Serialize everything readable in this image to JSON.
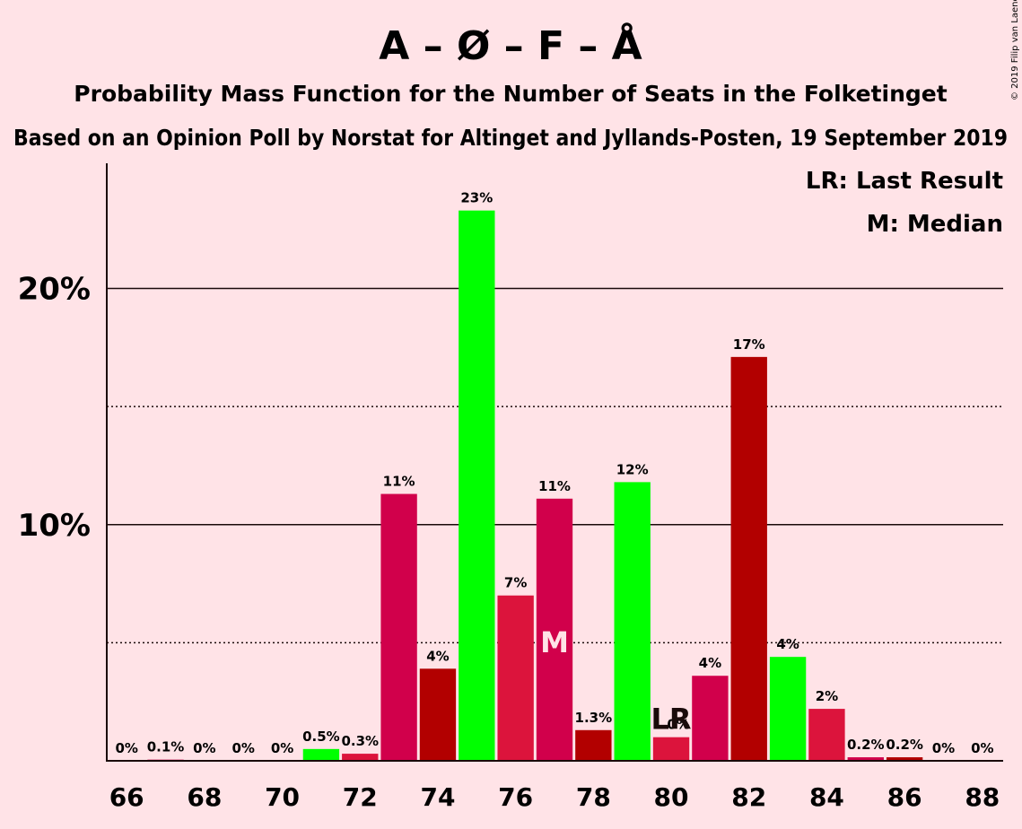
{
  "chart_data": {
    "type": "bar",
    "title": "A – Ø – F – Å",
    "subtitle": "Probability Mass Function for the Number of Seats in the Folketinget",
    "source": "Based on an Opinion Poll by Norstat for Altinget and Jyllands-Posten, 19 September 2019",
    "copyright": "© 2019 Filip van Laenen",
    "legend": [
      "LR: Last Result",
      "M: Median"
    ],
    "legend_position": "top-right",
    "ylim": [
      0,
      25.3
    ],
    "yticks": [
      {
        "value": 10,
        "label": "10%"
      },
      {
        "value": 20,
        "label": "20%"
      }
    ],
    "ygrid_dotted": [
      5,
      15
    ],
    "xtick_labels": [
      "66",
      "68",
      "70",
      "72",
      "74",
      "76",
      "78",
      "80",
      "82",
      "84",
      "86",
      "88"
    ],
    "bars": [
      {
        "seats": 66,
        "value": 0,
        "label": "0%",
        "color": "#dc143c"
      },
      {
        "seats": 67,
        "value": 0.05,
        "label": "0.1%",
        "color": "#d1004b"
      },
      {
        "seats": 68,
        "value": 0,
        "label": "0%",
        "color": "#b20000"
      },
      {
        "seats": 69,
        "value": 0,
        "label": "0%",
        "color": "#00ff00"
      },
      {
        "seats": 70,
        "value": 0,
        "label": "0%",
        "color": "#dc143c"
      },
      {
        "seats": 71,
        "value": 0.5,
        "label": "0.5%",
        "color": "#00ff00"
      },
      {
        "seats": 72,
        "value": 0.3,
        "label": "0.3%",
        "color": "#dc143c"
      },
      {
        "seats": 73,
        "value": 11.3,
        "label": "11%",
        "color": "#d1004b"
      },
      {
        "seats": 74,
        "value": 3.9,
        "label": "4%",
        "color": "#b20000"
      },
      {
        "seats": 75,
        "value": 23.3,
        "label": "23%",
        "color": "#00ff00"
      },
      {
        "seats": 76,
        "value": 7.0,
        "label": "7%",
        "color": "#dc143c"
      },
      {
        "seats": 77,
        "value": 11.1,
        "label": "11%",
        "color": "#d1004b"
      },
      {
        "seats": 78,
        "value": 1.3,
        "label": "1.3%",
        "color": "#b20000"
      },
      {
        "seats": 79,
        "value": 11.8,
        "label": "12%",
        "color": "#00ff00"
      },
      {
        "seats": 80,
        "value": 1.0,
        "label": "1.0%",
        "color": "#dc143c"
      },
      {
        "seats": 81,
        "value": 3.6,
        "label": "4%",
        "color": "#d1004b"
      },
      {
        "seats": 82,
        "value": 17.1,
        "label": "17%",
        "color": "#b20000"
      },
      {
        "seats": 83,
        "value": 4.4,
        "label": "4%",
        "color": "#00ff00"
      },
      {
        "seats": 84,
        "value": 2.2,
        "label": "2%",
        "color": "#dc143c"
      },
      {
        "seats": 85,
        "value": 0.15,
        "label": "0.2%",
        "color": "#d1004b"
      },
      {
        "seats": 86,
        "value": 0.15,
        "label": "0.2%",
        "color": "#b20000"
      },
      {
        "seats": 87,
        "value": 0,
        "label": "0%",
        "color": "#00ff00"
      },
      {
        "seats": 88,
        "value": 0,
        "label": "0%",
        "color": "#dc143c"
      }
    ],
    "markers": [
      {
        "seats": 77,
        "text": "M",
        "meaning": "Median"
      },
      {
        "seats": 80,
        "text": "LR",
        "meaning": "Last Result"
      }
    ]
  }
}
